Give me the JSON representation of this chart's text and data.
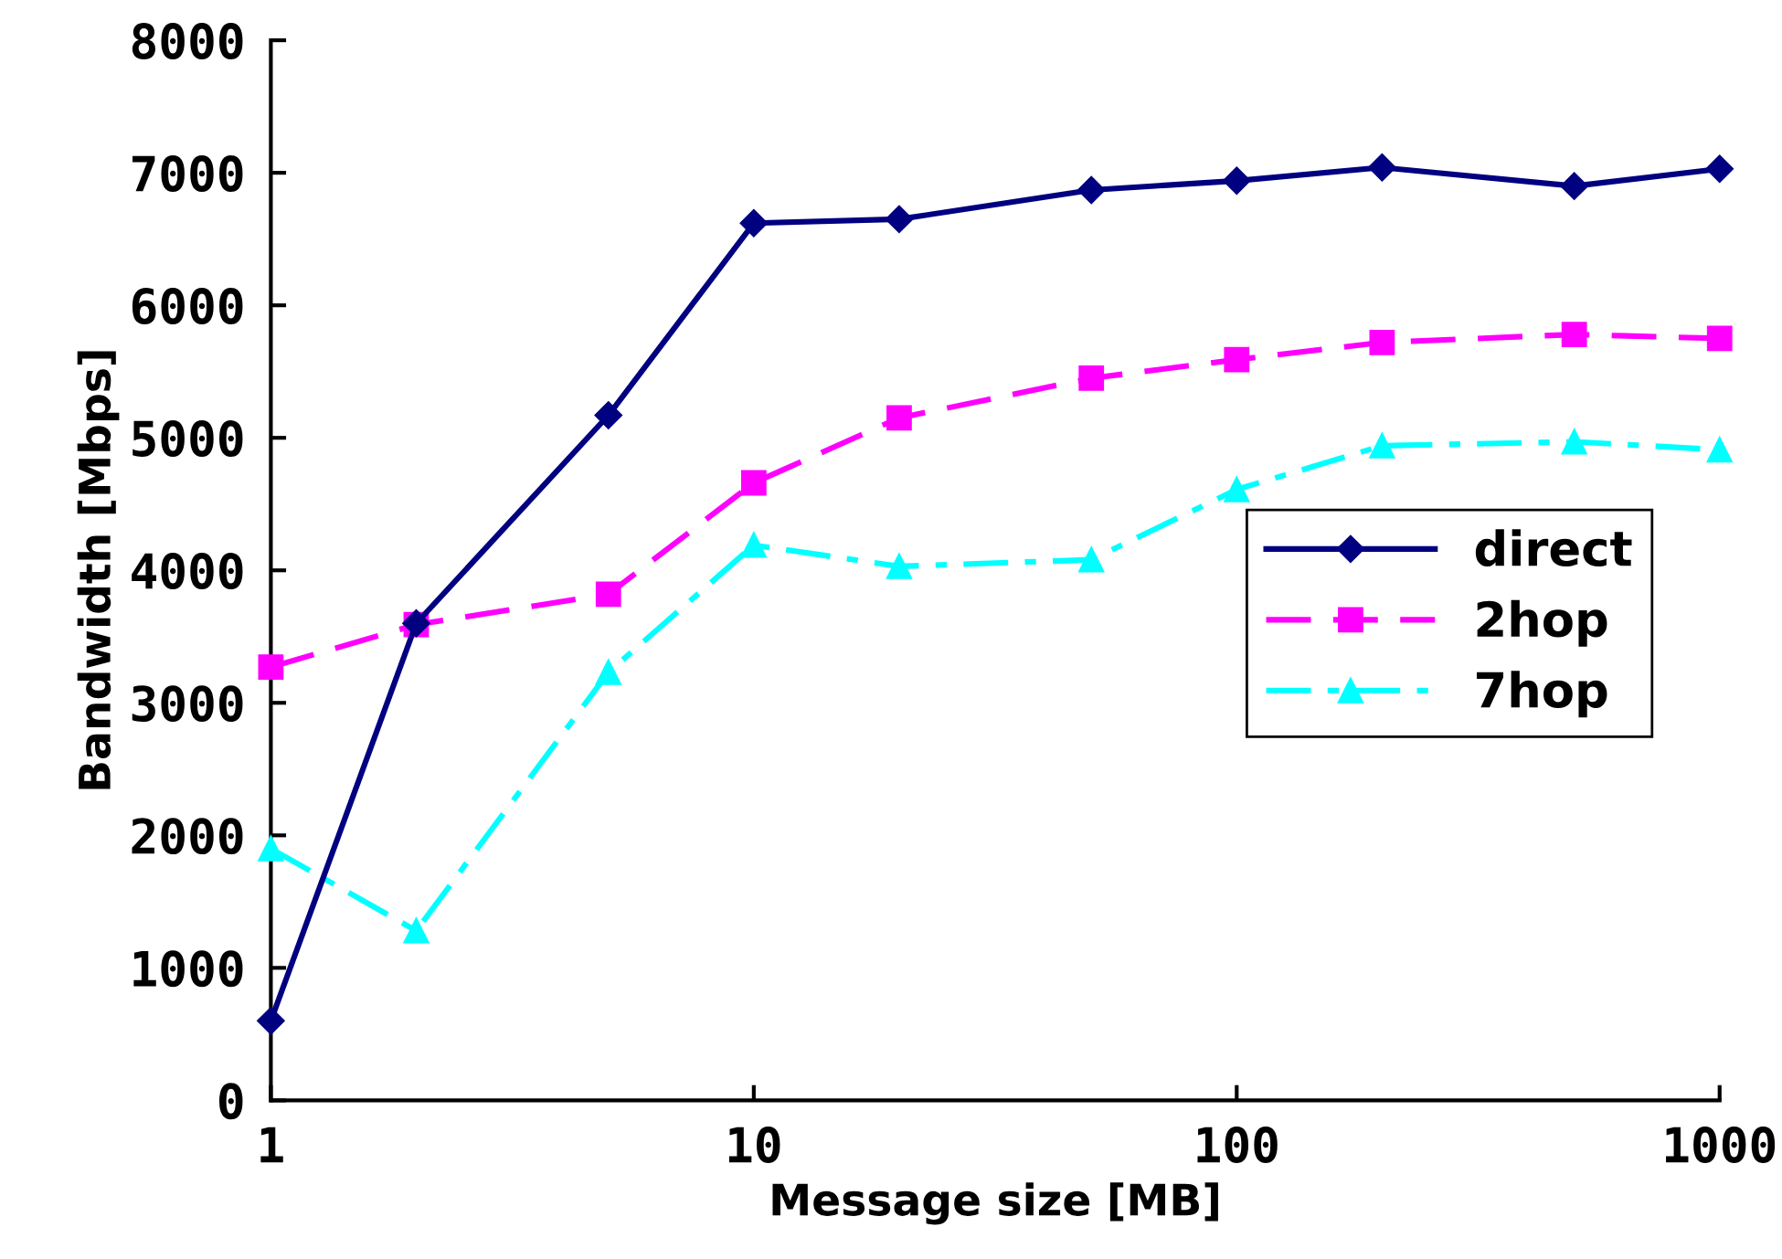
{
  "chart_data": {
    "type": "line",
    "xlabel": "Message size [MB]",
    "ylabel": "Bandwidth [Mbps]",
    "x": [
      1,
      2,
      5,
      10,
      20,
      50,
      100,
      200,
      500,
      1000
    ],
    "log": "x",
    "xlim": [
      1,
      1000
    ],
    "xticks": [
      1,
      10,
      100,
      1000
    ],
    "ylim": [
      0,
      8000
    ],
    "yticks": [
      0,
      1000,
      2000,
      3000,
      4000,
      5000,
      6000,
      7000,
      8000
    ],
    "grid": false,
    "legend": "right",
    "series": [
      {
        "name": "direct",
        "color": "#000080",
        "marker": "diamond",
        "line_style": "solid",
        "values": [
          600,
          3600,
          5170,
          6620,
          6650,
          6870,
          6940,
          7040,
          6900,
          7030
        ]
      },
      {
        "name": "2hop",
        "color": "#ff00ff",
        "marker": "square",
        "line_style": "dashed",
        "values": [
          3270,
          3590,
          3820,
          4660,
          5150,
          5450,
          5590,
          5720,
          5780,
          5750
        ]
      },
      {
        "name": "7hop",
        "color": "#00ffff",
        "marker": "triangle",
        "line_style": "dashdot",
        "values": [
          1900,
          1280,
          3230,
          4190,
          4030,
          4080,
          4610,
          4940,
          4970,
          4910
        ]
      }
    ]
  }
}
